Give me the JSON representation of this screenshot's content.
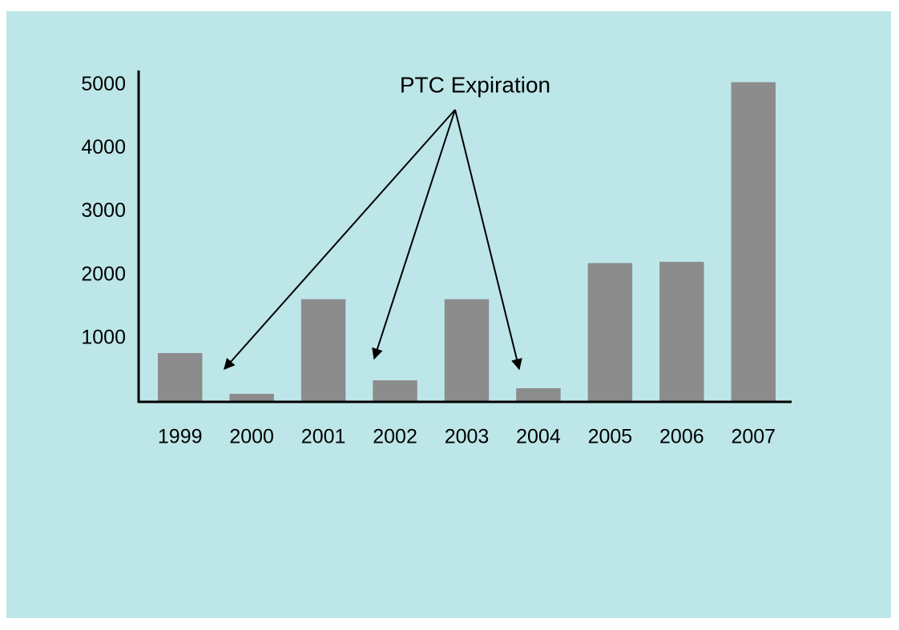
{
  "chart_data": {
    "type": "bar",
    "annotation": "PTC Expiration",
    "categories": [
      "1999",
      "2000",
      "2001",
      "2002",
      "2003",
      "2004",
      "2005",
      "2006",
      "2007"
    ],
    "values": [
      770,
      126,
      1620,
      340,
      1620,
      215,
      2190,
      2210,
      5045
    ],
    "color": "#8c8c8c",
    "ylim": [
      0,
      5230
    ],
    "yticks": [
      1000,
      2000,
      3000,
      4000,
      5000
    ],
    "grid": false
  }
}
